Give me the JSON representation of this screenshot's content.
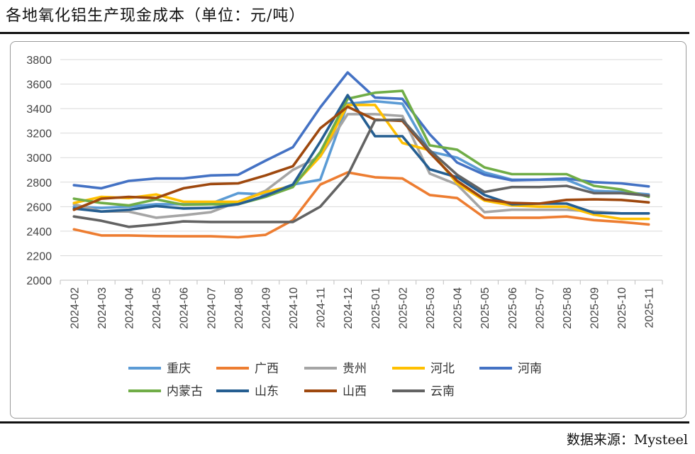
{
  "title": "各地氧化铝生产现金成本（单位：元/吨）",
  "source": "数据来源：Mysteel",
  "chart_data": {
    "type": "line",
    "title": "",
    "xlabel": "",
    "ylabel": "",
    "ylim": [
      2000,
      3800
    ],
    "yticks": [
      2000,
      2200,
      2400,
      2600,
      2800,
      3000,
      3200,
      3400,
      3600,
      3800
    ],
    "grid": true,
    "legend_position": "bottom",
    "categories": [
      "2024-02",
      "2024-03",
      "2024-04",
      "2024-05",
      "2024-06",
      "2024-07",
      "2024-08",
      "2024-09",
      "2024-10",
      "2024-11",
      "2024-12",
      "2025-01",
      "2025-02",
      "2025-03",
      "2025-04",
      "2025-05",
      "2025-06",
      "2025-07",
      "2025-08",
      "2025-09",
      "2025-10",
      "2025-11"
    ],
    "series": [
      {
        "name": "重庆",
        "color": "#5b9bd5",
        "values": [
          2600,
          2590,
          2600,
          2620,
          2620,
          2625,
          2710,
          2700,
          2780,
          2820,
          3440,
          3460,
          3440,
          3050,
          3000,
          2880,
          2820,
          2820,
          2820,
          2730,
          2720,
          2700
        ]
      },
      {
        "name": "广西",
        "color": "#ed7d31",
        "values": [
          2415,
          2365,
          2365,
          2360,
          2358,
          2358,
          2350,
          2370,
          2490,
          2780,
          2880,
          2840,
          2830,
          2695,
          2670,
          2510,
          2510,
          2510,
          2520,
          2490,
          2475,
          2455
        ]
      },
      {
        "name": "贵州",
        "color": "#a5a5a5",
        "values": [
          2620,
          2560,
          2560,
          2510,
          2530,
          2555,
          2640,
          2730,
          2900,
          3010,
          3355,
          3355,
          3340,
          2870,
          2780,
          2555,
          2575,
          2575,
          2575,
          2560,
          2545,
          2545
        ]
      },
      {
        "name": "河北",
        "color": "#ffc000",
        "values": [
          2630,
          2680,
          2670,
          2700,
          2640,
          2640,
          2640,
          2720,
          2770,
          3010,
          3430,
          3430,
          3120,
          3060,
          2790,
          2650,
          2610,
          2600,
          2600,
          2535,
          2500,
          2500
        ]
      },
      {
        "name": "河南",
        "color": "#4472c4",
        "values": [
          2775,
          2750,
          2810,
          2830,
          2830,
          2855,
          2860,
          2975,
          3085,
          3410,
          3695,
          3490,
          3480,
          3190,
          2960,
          2860,
          2815,
          2820,
          2830,
          2800,
          2790,
          2765
        ]
      },
      {
        "name": "内蒙古",
        "color": "#70ad47",
        "values": [
          2665,
          2630,
          2610,
          2660,
          2615,
          2620,
          2620,
          2680,
          2760,
          3045,
          3480,
          3530,
          3545,
          3100,
          3065,
          2920,
          2865,
          2865,
          2865,
          2770,
          2740,
          2680
        ]
      },
      {
        "name": "山东",
        "color": "#255e91",
        "values": [
          2585,
          2560,
          2575,
          2605,
          2585,
          2590,
          2620,
          2690,
          2780,
          3130,
          3510,
          3175,
          3175,
          2905,
          2840,
          2695,
          2620,
          2625,
          2625,
          2550,
          2545,
          2545
        ]
      },
      {
        "name": "山西",
        "color": "#9e480e",
        "values": [
          2575,
          2665,
          2680,
          2670,
          2750,
          2785,
          2790,
          2855,
          2930,
          3240,
          3415,
          3310,
          3300,
          3040,
          2810,
          2660,
          2630,
          2625,
          2655,
          2660,
          2655,
          2635
        ]
      },
      {
        "name": "云南",
        "color": "#636363",
        "values": [
          2520,
          2485,
          2435,
          2455,
          2480,
          2475,
          2475,
          2475,
          2475,
          2600,
          2855,
          3305,
          3310,
          3060,
          2860,
          2720,
          2760,
          2760,
          2770,
          2710,
          2710,
          2690
        ]
      }
    ]
  }
}
